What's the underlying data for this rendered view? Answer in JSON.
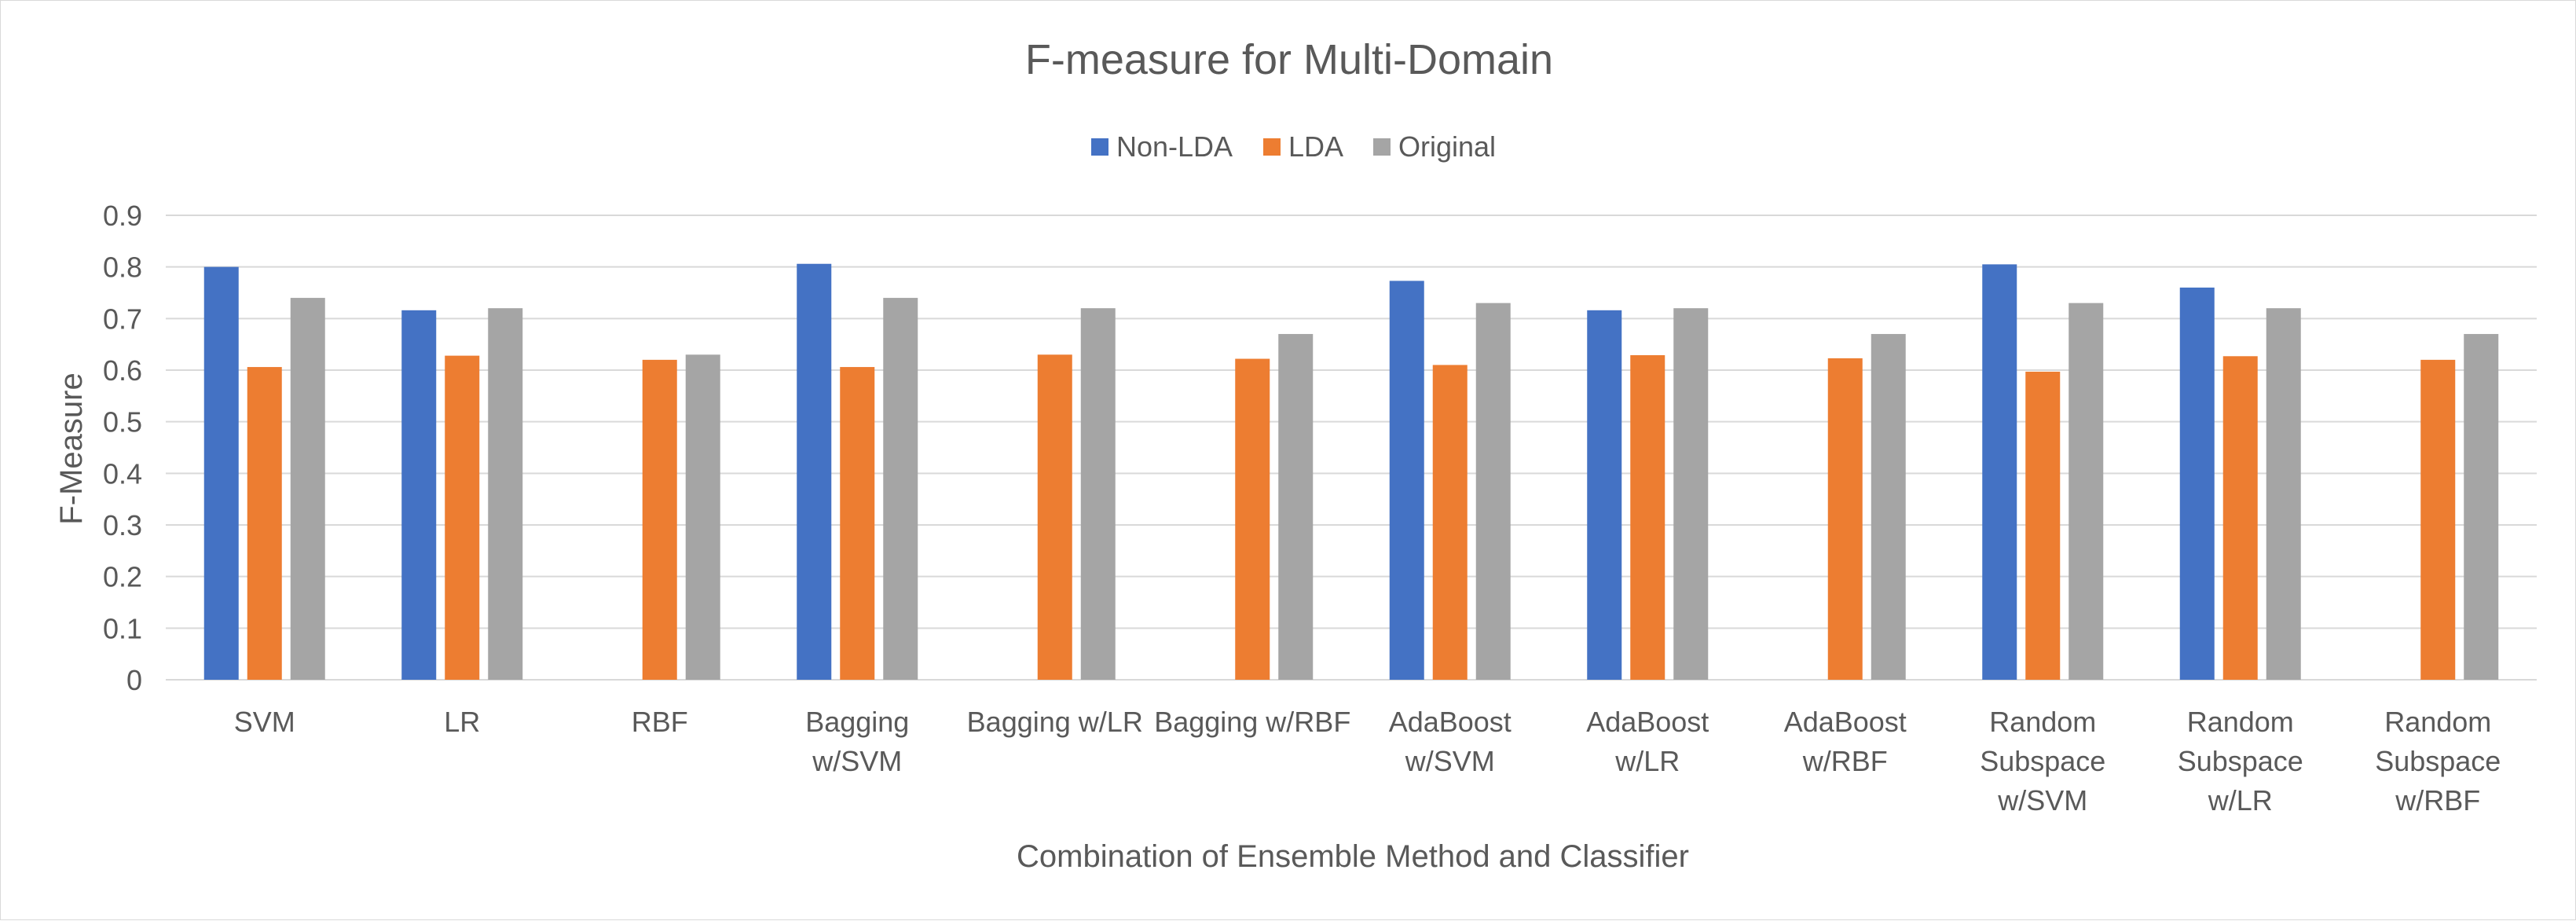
{
  "chart_data": {
    "type": "bar",
    "title": "F-measure for Multi-Domain",
    "xlabel": "Combination of Ensemble Method and Classifier",
    "ylabel": "F-Measure",
    "ylim": [
      0,
      0.9
    ],
    "yticks": [
      "0",
      "0.1",
      "0.2",
      "0.3",
      "0.4",
      "0.5",
      "0.6",
      "0.7",
      "0.8",
      "0.9"
    ],
    "grid": true,
    "legend_position": "top",
    "categories": [
      [
        "SVM"
      ],
      [
        "LR"
      ],
      [
        "RBF"
      ],
      [
        "Bagging",
        "w/SVM"
      ],
      [
        "Bagging w/LR"
      ],
      [
        "Bagging w/RBF"
      ],
      [
        "AdaBoost",
        "w/SVM"
      ],
      [
        "AdaBoost",
        "w/LR"
      ],
      [
        "AdaBoost",
        "w/RBF"
      ],
      [
        "Random",
        "Subspace",
        "w/SVM"
      ],
      [
        "Random",
        "Subspace",
        "w/LR"
      ],
      [
        "Random",
        "Subspace",
        "w/RBF"
      ]
    ],
    "series": [
      {
        "name": "Non-LDA",
        "color": "#4472c4",
        "values": [
          0.8,
          0.716,
          null,
          0.806,
          null,
          null,
          0.773,
          0.716,
          null,
          0.805,
          0.76,
          null
        ]
      },
      {
        "name": "LDA",
        "color": "#ed7d31",
        "values": [
          0.606,
          0.628,
          0.62,
          0.606,
          0.63,
          0.622,
          0.61,
          0.629,
          0.623,
          0.597,
          0.627,
          0.62
        ]
      },
      {
        "name": "Original",
        "color": "#a5a5a5",
        "values": [
          0.74,
          0.72,
          0.63,
          0.74,
          0.72,
          0.67,
          0.73,
          0.72,
          0.67,
          0.73,
          0.72,
          0.67
        ]
      }
    ]
  }
}
